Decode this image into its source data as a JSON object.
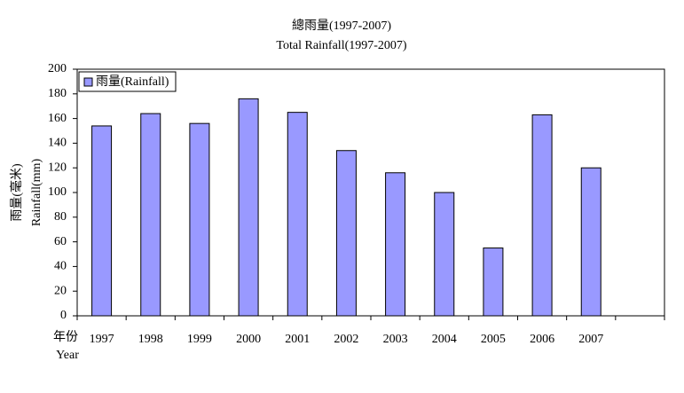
{
  "chart_data": {
    "type": "bar",
    "title": "總雨量(1997-2007)",
    "subtitle": "Total Rainfall(1997-2007)",
    "y_label": "雨量(毫米)",
    "y_label_en": "Rainfall(mm)",
    "x_label": "年份",
    "x_label_en": "Year",
    "categories": [
      "1997",
      "1998",
      "1999",
      "2000",
      "2001",
      "2002",
      "2003",
      "2004",
      "2005",
      "2006",
      "2007",
      null
    ],
    "series": [
      {
        "name": "雨量(Rainfall)",
        "color": "#9999ff",
        "values": [
          154,
          164,
          156,
          176,
          165,
          134,
          116,
          100,
          55,
          163,
          120,
          null
        ]
      }
    ],
    "ylim": [
      0,
      200
    ],
    "yticks": [
      0,
      20,
      40,
      60,
      80,
      100,
      120,
      140,
      160,
      180,
      200
    ],
    "grid": false,
    "legend": "upper-left"
  }
}
